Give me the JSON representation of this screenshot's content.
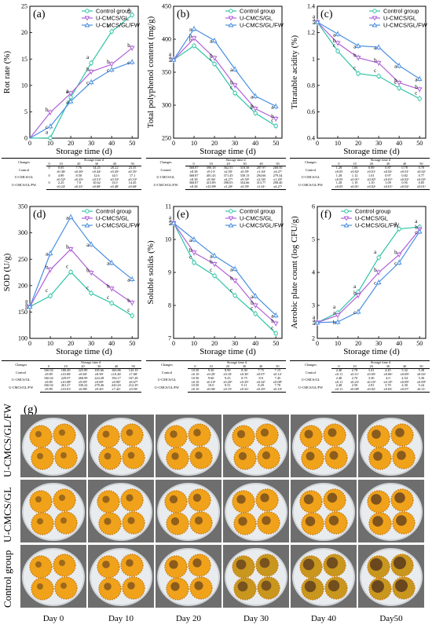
{
  "days": [
    0,
    10,
    20,
    30,
    40,
    50
  ],
  "legend": [
    "Control group",
    "U-CMCS/GL",
    "U-CMCS/GL/FW"
  ],
  "colors": {
    "control": "#2ec4a6",
    "gl": "#b061d8",
    "fw": "#4a8fe0",
    "axis": "#000000"
  },
  "chart_data": [
    {
      "id": "a",
      "letter": "(a)",
      "type": "line",
      "xlabel": "Storage time (d)",
      "ylabel": "Rot rate (%)",
      "x": [
        0,
        10,
        20,
        30,
        40,
        50
      ],
      "xlim": [
        0,
        53
      ],
      "ylim": [
        0,
        25
      ],
      "yticks": [
        0,
        5,
        10,
        15,
        20,
        25
      ],
      "legend_position": "top-right",
      "series": [
        {
          "name": "Control group",
          "values": [
            0.05,
            7.76,
            14.25,
            20.22,
            23.35
          ],
          "x": [
            10,
            20,
            30,
            40,
            50
          ],
          "sig": [
            "a",
            "a",
            "a",
            "a",
            "a"
          ]
        },
        {
          "name": "U-CMCS/GL",
          "values": [
            4.89,
            8.5,
            12.6,
            14.0,
            17.1
          ],
          "x": [
            10,
            20,
            30,
            40,
            50
          ],
          "sig": [
            "b",
            "a",
            "b",
            "b",
            "b"
          ]
        },
        {
          "name": "U-CMCS/GL/FW",
          "values": [
            2.25,
            7.0,
            10.62,
            13.0,
            14.45
          ],
          "x": [
            10,
            20,
            30,
            40,
            50
          ],
          "sig": [
            "c",
            "a",
            "c",
            "c",
            "c"
          ]
        }
      ]
    },
    {
      "id": "b",
      "letter": "(b)",
      "type": "line",
      "xlabel": "Storage time (d)",
      "ylabel": "Total polyphenol content (mg/g)",
      "x": [
        0,
        10,
        20,
        30,
        40,
        50
      ],
      "xlim": [
        0,
        53
      ],
      "ylim": [
        250,
        450
      ],
      "yticks": [
        250,
        300,
        350,
        400,
        450
      ],
      "legend_position": "top-right",
      "series": [
        {
          "name": "Control group",
          "values": [
            368.87,
            390.18,
            362.55,
            318.38,
            287.97,
            268.5
          ],
          "sig": [
            "a",
            "b",
            "c",
            "c",
            "c",
            "c"
          ]
        },
        {
          "name": "U-CMCS/GL",
          "values": [
            368.87,
            401.43,
            371.45,
            330.13,
            294.66,
            279.34
          ],
          "sig": [
            "a",
            "b",
            "b",
            "b",
            "b",
            "b"
          ]
        },
        {
          "name": "U-CMCS/GL/FW",
          "values": [
            368.87,
            415.89,
            398.05,
            354.66,
            313.77,
            298.4
          ],
          "sig": [
            "a",
            "a",
            "a",
            "a",
            "a",
            "a"
          ]
        }
      ]
    },
    {
      "id": "c",
      "letter": "(c)",
      "type": "line",
      "xlabel": "Storage time (d)",
      "ylabel": "Titratable acidity (%)",
      "x": [
        0,
        10,
        20,
        30,
        40,
        50
      ],
      "xlim": [
        0,
        53
      ],
      "ylim": [
        0.4,
        1.4
      ],
      "yticks": [
        0.4,
        0.6,
        0.8,
        1.0,
        1.2,
        1.4
      ],
      "legend_position": "top-right",
      "series": [
        {
          "name": "Control group",
          "values": [
            1.28,
            1.06,
            0.89,
            0.87,
            0.78,
            0.7
          ],
          "sig": [
            "a",
            "c",
            "c",
            "c",
            "c",
            "c"
          ]
        },
        {
          "name": "U-CMCS/GL",
          "values": [
            1.28,
            1.12,
            1.01,
            0.97,
            0.82,
            0.77
          ],
          "sig": [
            "a",
            "b",
            "b",
            "b",
            "b",
            "b"
          ]
        },
        {
          "name": "U-CMCS/GL/FW",
          "values": [
            1.28,
            1.19,
            1.1,
            1.09,
            0.95,
            0.85
          ],
          "sig": [
            "a",
            "a",
            "a",
            "a",
            "a",
            "a"
          ]
        }
      ]
    },
    {
      "id": "d",
      "letter": "(d)",
      "type": "line",
      "xlabel": "Storage time (d)",
      "ylabel": "SOD (U/g)",
      "x": [
        0,
        10,
        20,
        30,
        40,
        50
      ],
      "xlim": [
        0,
        53
      ],
      "ylim": [
        100,
        350
      ],
      "yticks": [
        100,
        150,
        200,
        250,
        300,
        350
      ],
      "legend_position": "top-right",
      "series": [
        {
          "name": "Control group",
          "values": [
            160.02,
            180.49,
            225.89,
            185.66,
            166.86,
            143.1
          ],
          "sig": [
            "a",
            "c",
            "c",
            "c",
            "c",
            "c"
          ]
        },
        {
          "name": "U-CMCS/GL",
          "values": [
            160.02,
            229.97,
            268.99,
            224.28,
            194.17,
            167.28
          ],
          "sig": [
            "a",
            "b",
            "b",
            "b",
            "b",
            "b"
          ]
        },
        {
          "name": "U-CMCS/GL/FW",
          "values": [
            160.02,
            261.27,
            330.22,
            278.46,
            243.43,
            212.29
          ],
          "sig": [
            "a",
            "a",
            "a",
            "a",
            "a",
            "a"
          ]
        }
      ]
    },
    {
      "id": "e",
      "letter": "(e)",
      "type": "line",
      "xlabel": "Storage time (d)",
      "ylabel": "Soluble solids (%)",
      "x": [
        0,
        10,
        20,
        30,
        40,
        50
      ],
      "xlim": [
        0,
        53
      ],
      "ylim": [
        7,
        11
      ],
      "yticks": [
        7,
        8,
        9,
        10,
        11
      ],
      "legend_position": "top-right",
      "series": [
        {
          "name": "Control group",
          "values": [
            10.5,
            9.3,
            8.9,
            8.3,
            7.75,
            7.15
          ],
          "sig": [
            "a",
            "c",
            "c",
            "c",
            "c",
            "c"
          ]
        },
        {
          "name": "U-CMCS/GL",
          "values": [
            10.5,
            9.6,
            9.25,
            8.75,
            8.0,
            7.45
          ],
          "sig": [
            "a",
            "b",
            "b",
            "b",
            "b",
            "b"
          ]
        },
        {
          "name": "U-CMCS/GL/FW",
          "values": [
            10.5,
            10.0,
            9.51,
            9.11,
            8.29,
            7.7
          ],
          "sig": [
            "a",
            "a",
            "a",
            "a",
            "a",
            "a"
          ]
        }
      ]
    },
    {
      "id": "f",
      "letter": "(f)",
      "type": "line",
      "xlabel": "Storage time (d)",
      "ylabel": "Aerobic plate count (log CFU/g)",
      "x": [
        0,
        10,
        20,
        30,
        40,
        50
      ],
      "xlim": [
        0,
        53
      ],
      "ylim": [
        2,
        6
      ],
      "yticks": [
        2,
        3,
        4,
        5,
        6
      ],
      "legend_position": "top-left",
      "series": [
        {
          "name": "Control group",
          "values": [
            2.48,
            2.78,
            3.41,
            4.45,
            5.32,
            5.38
          ],
          "sig": [
            "a",
            "a",
            "a",
            "a",
            "a",
            "a"
          ]
        },
        {
          "name": "U-CMCS/GL",
          "values": [
            2.48,
            2.7,
            3.3,
            4.0,
            4.54,
            5.3
          ],
          "sig": [
            "a",
            "a",
            "b",
            "b",
            "b",
            "b"
          ]
        },
        {
          "name": "U-CMCS/GL/FW",
          "values": [
            2.48,
            2.5,
            2.81,
            3.7,
            4.3,
            5.24
          ],
          "sig": [
            "a",
            "b",
            "c",
            "c",
            "c",
            "c"
          ]
        }
      ]
    }
  ],
  "tables": [
    {
      "id": "a",
      "changes": "Changes",
      "storage": "Storage time d",
      "cols": [
        "0",
        "10",
        "20",
        "30",
        "40",
        "50"
      ],
      "rows": [
        {
          "label": "Control",
          "cells": [
            "0",
            "0.05",
            "7.76",
            "14.25",
            "20.22",
            "23.35"
          ],
          "sd": [
            "",
            "±0.36ᵃ",
            "±0.40ᵃ",
            "±0.44ᵃ",
            "±0.45ᵃ",
            "±0.35ᵃ"
          ]
        },
        {
          "label": "U-CMCS/GL",
          "cells": [
            "0",
            "4.89",
            "8.50",
            "12.6",
            "14.0",
            "17.1"
          ],
          "sd": [
            "",
            "±0.52ᵇ",
            "±0.45ᵃ",
            "±0.51ᵇ",
            "±0.53ᵇ",
            "±0.33ᵇ"
          ]
        },
        {
          "label": "U-CMCS/GL/FW",
          "cells": [
            "0",
            "2.25",
            "7.0",
            "10.62",
            "13.0",
            "14.45"
          ],
          "sd": [
            "",
            "±0.24ᶜ",
            "±0.41ᵃ",
            "±0.68ᶜ",
            "±0.48ᶜ",
            "±0.68ᶜ"
          ]
        }
      ]
    },
    {
      "id": "b",
      "changes": "Changes",
      "storage": "Storage time d",
      "cols": [
        "0",
        "10",
        "20",
        "30",
        "40",
        "50"
      ],
      "rows": [
        {
          "label": "Control",
          "cells": [
            "368.87",
            "390.18",
            "362.55",
            "318.38",
            "287.97",
            "268.50"
          ],
          "sd": [
            "±8.38",
            "±9.13ᶜ",
            "±2.50ᶜ",
            "±0.59ᶜ",
            "±1.04ᶜ",
            "±4.27ᶜ"
          ]
        },
        {
          "label": "U-CMCS/GL",
          "cells": [
            "368.87",
            "401.43",
            "371.45",
            "330.13",
            "294.66",
            "279.34"
          ],
          "sd": [
            "±8.38",
            "±9.36ᵇ",
            "±4.27ᵇ",
            "±9.59ᵇ",
            "±2.56ᵇ",
            "±1.20ᵇ"
          ]
        },
        {
          "label": "U-CMCS/GL/FW",
          "cells": [
            "368.87",
            "415.89",
            "398.05",
            "354.66",
            "313.77",
            "298.40"
          ],
          "sd": [
            "±8.38",
            "±10.09ᵃ",
            "±1.20ᵃ",
            "±0.59ᵃ",
            "±1.61ᵃ",
            "±4.27ᵃ"
          ]
        }
      ]
    },
    {
      "id": "c",
      "changes": "Changes",
      "storage": "Storage time d",
      "cols": [
        "0",
        "10",
        "20",
        "30",
        "40",
        "50"
      ],
      "rows": [
        {
          "label": "Control",
          "cells": [
            "1.28",
            "1.06",
            "0.89",
            "0.87",
            "0.78",
            "0.70"
          ],
          "sd": [
            "±0.05",
            "±0.02ᶜ",
            "±0.01ᶜ",
            "±0.02ᶜ",
            "±0.01ᶜ",
            "±0.02ᶜ"
          ]
        },
        {
          "label": "U-CMCS/GL",
          "cells": [
            "1.28",
            "1.12",
            "1.01",
            "0.97",
            "0.82",
            "0.77"
          ],
          "sd": [
            "±0.05",
            "±0.01ᵇ",
            "±0.02ᵇ",
            "±0.01ᵇ",
            "±0.02ᵇ",
            "±0.02ᵇ"
          ]
        },
        {
          "label": "U-CMCS/GL/FW",
          "cells": [
            "1.28",
            "1.19",
            "1.10",
            "1.09",
            "0.95",
            "0.85"
          ],
          "sd": [
            "±0.05",
            "±0.01ᵃ",
            "±0.02ᵃ",
            "±0.01ᵃ",
            "±0.02ᵃ",
            "±0.01ᵃ"
          ]
        }
      ]
    },
    {
      "id": "d",
      "changes": "Changes",
      "storage": "Storage time d",
      "cols": [
        "0",
        "10",
        "20",
        "30",
        "40",
        "50"
      ],
      "rows": [
        {
          "label": "Control",
          "cells": [
            "160.02",
            "180.49",
            "225.89",
            "185.66",
            "166.86",
            "143.10"
          ],
          "sd": [
            "±9.89",
            "±10.00ᶜ",
            "±8.60ᶜ",
            "±8.90ᶜ",
            "±10.20ᶜ",
            "±7.68ᶜ"
          ]
        },
        {
          "label": "U-CMCS/GL",
          "cells": [
            "160.02",
            "229.97",
            "268.99",
            "224.28",
            "194.17",
            "167.28"
          ],
          "sd": [
            "±9.89",
            "±10.08ᵇ",
            "±9.85ᵇ",
            "±9.69ᵇ",
            "±9.90ᵇ",
            "±8.67ᵇ"
          ]
        },
        {
          "label": "U-CMCS/GL/FW",
          "cells": [
            "160.02",
            "261.27",
            "330.22",
            "278.46",
            "243.43",
            "212.29"
          ],
          "sd": [
            "±9.89",
            "±10.01ᵃ",
            "±6.80ᵃ",
            "±9.20ᵃ",
            "±7.42ᵃ",
            "±9.50ᵃ"
          ]
        }
      ]
    },
    {
      "id": "e",
      "changes": "Changes",
      "storage": "Storage time d",
      "cols": [
        "0",
        "10",
        "20",
        "30",
        "40",
        "50"
      ],
      "rows": [
        {
          "label": "Control",
          "cells": [
            "10.50",
            "9.30",
            "8.90",
            "8.30",
            "7.75",
            "7.15"
          ],
          "sd": [
            "±0.10",
            "±0.20ᶜ",
            "±0.10ᶜ",
            "±0.30ᶜ",
            "±0.07ᶜ",
            "±0.12ᶜ"
          ]
        },
        {
          "label": "U-CMCS/GL",
          "cells": [
            "10.50",
            "9.60",
            "9.25",
            "8.75",
            "8.0",
            "7.45"
          ],
          "sd": [
            "±0.10",
            "±0.10ᵇ",
            "±0.20ᵇ",
            "±0.35ᵇ",
            "±0.32ᵇ",
            "±0.08ᵇ"
          ]
        },
        {
          "label": "U-CMCS/GL/FW",
          "cells": [
            "10.50",
            "10.0",
            "9.51",
            "9.11",
            "8.29",
            "7.70"
          ],
          "sd": [
            "±0.10",
            "±0.06ᵃ",
            "±0.15ᵃ",
            "±0.32ᵃ",
            "±0.29ᵃ",
            "±0.10ᵃ"
          ]
        }
      ]
    },
    {
      "id": "f",
      "changes": "Changes",
      "storage": "Storage time d",
      "cols": [
        "0",
        "10",
        "20",
        "30",
        "40",
        "50"
      ],
      "rows": [
        {
          "label": "Control",
          "cells": [
            "2.48",
            "2.78",
            "3.41",
            "4.45",
            "5.32",
            "5.38"
          ],
          "sd": [
            "±0.11",
            "±0.11ᵃ",
            "±0.05ᵃ",
            "±0.06ᵃ",
            "±0.08ᵃ",
            "±0.04ᵃ"
          ]
        },
        {
          "label": "U-CMCS/GL",
          "cells": [
            "2.48",
            "2.70",
            "3.30",
            "4.0",
            "4.54",
            "5.30"
          ],
          "sd": [
            "±0.11",
            "±0.23ᵃ",
            "±0.10ᵇ",
            "±0.10ᵇ",
            "±0.09ᵇ",
            "±0.09ᵇ"
          ]
        },
        {
          "label": "U-CMCS/GL/FW",
          "cells": [
            "2.48",
            "2.50",
            "2.81",
            "3.70",
            "4.30",
            "5.24"
          ],
          "sd": [
            "±0.11",
            "±0.08ᵇ",
            "±0.02ᶜ",
            "±0.03ᶜ",
            "±0.07ᶜ",
            "±0.11ᶜ"
          ]
        }
      ]
    }
  ],
  "photo": {
    "letter": "(g)",
    "rows": [
      "U-CMCS/GL/FW",
      "U-CMCS/GL",
      "Control group"
    ],
    "days": [
      "Day 0",
      "Day 10",
      "Day 20",
      "Day 30",
      "Day 40",
      "Day50"
    ]
  }
}
